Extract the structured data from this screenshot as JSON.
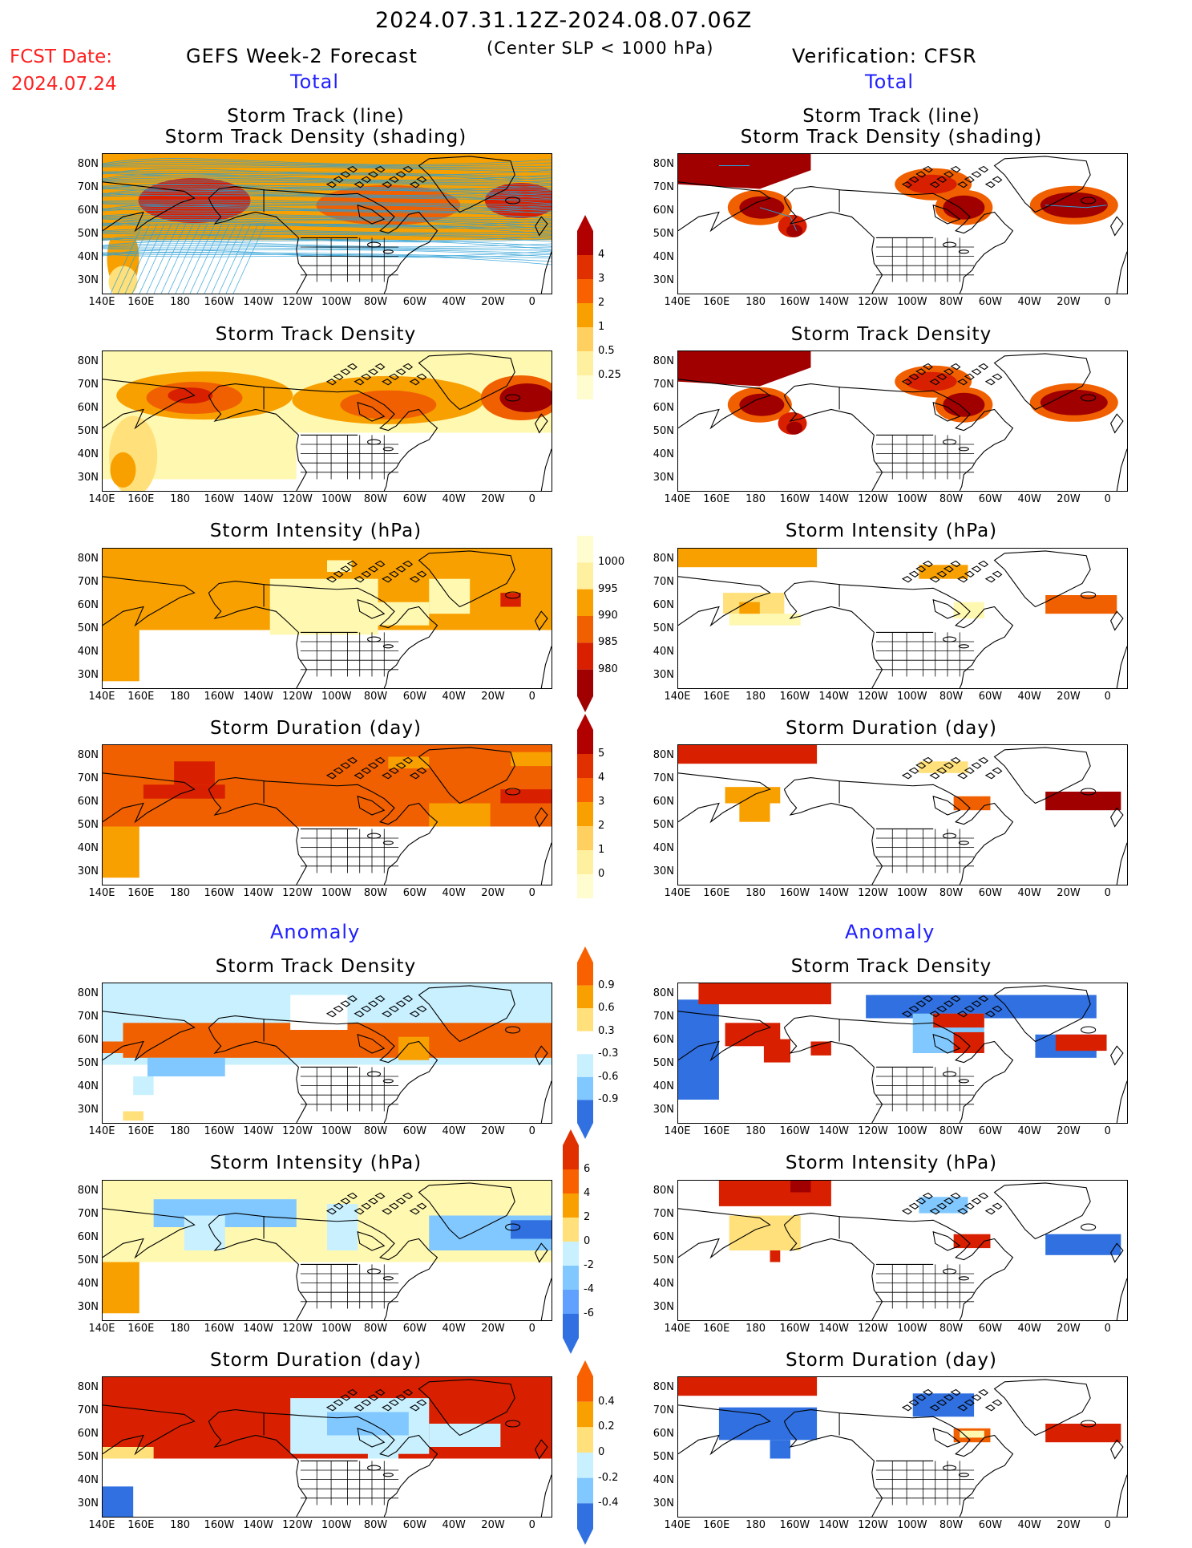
{
  "header": {
    "fcst_label": "FCST Date:",
    "fcst_date": "2024.07.24",
    "left_title": "GEFS Week-2 Forecast",
    "period": "2024.07.31.12Z-2024.08.07.06Z",
    "condition": "(Center SLP < 1000 hPa)",
    "right_title": "Verification: CFSR",
    "total_left": "Total",
    "total_right": "Total",
    "anomaly_left": "Anomaly",
    "anomaly_right": "Anomaly"
  },
  "axes": {
    "lat_ticks": [
      "80N",
      "70N",
      "60N",
      "50N",
      "40N",
      "30N"
    ],
    "lon_ticks": [
      "140E",
      "160E",
      "180",
      "160W",
      "140W",
      "120W",
      "100W",
      "80W",
      "60W",
      "40W",
      "20W",
      "0"
    ]
  },
  "panel_titles": {
    "track_line": "Storm Track (line)",
    "track_shading": "Storm Track Density (shading)",
    "density": "Storm Track Density",
    "intensity": "Storm Intensity (hPa)",
    "duration": "Storm Duration (day)"
  },
  "colorbars": {
    "density_total": [
      "4",
      "3",
      "2",
      "1",
      "0.5",
      "0.25"
    ],
    "intensity_total": [
      "1000",
      "995",
      "990",
      "985",
      "980"
    ],
    "duration_total": [
      "5",
      "4",
      "3",
      "2",
      "1",
      "0"
    ],
    "density_anom": [
      "0.9",
      "0.6",
      "0.3",
      "-0.3",
      "-0.6",
      "-0.9"
    ],
    "intensity_anom": [
      "6",
      "4",
      "2",
      "0",
      "-2",
      "-4",
      "-6"
    ],
    "duration_anom": [
      "0.4",
      "0.2",
      "0",
      "-0.2",
      "-0.4"
    ]
  },
  "colors": {
    "warm": [
      "#fff8b0",
      "#ffe07a",
      "#f8a000",
      "#f06000",
      "#d82000",
      "#a00000"
    ],
    "cool": [
      "#c8f0ff",
      "#80c8ff",
      "#3070e0"
    ],
    "track_line": "#2a9fd6"
  },
  "chart_data": [
    {
      "type": "heatmap",
      "panel": "Forecast Total Storm Track (line) / Storm Track Density (shading)",
      "xlim": [
        "140E",
        "0"
      ],
      "ylim": [
        "25N",
        "85N"
      ]
    },
    {
      "type": "heatmap",
      "panel": "Verification Total Storm Track (line) / Storm Track Density (shading)",
      "xlim": [
        "140E",
        "0"
      ],
      "ylim": [
        "25N",
        "85N"
      ]
    },
    {
      "type": "heatmap",
      "panel": "Forecast Total Storm Track Density",
      "levels": [
        0.25,
        0.5,
        1,
        2,
        3,
        4
      ]
    },
    {
      "type": "heatmap",
      "panel": "Verification Total Storm Track Density",
      "levels": [
        0.25,
        0.5,
        1,
        2,
        3,
        4
      ]
    },
    {
      "type": "heatmap",
      "panel": "Forecast Total Storm Intensity (hPa)",
      "levels": [
        980,
        985,
        990,
        995,
        1000
      ]
    },
    {
      "type": "heatmap",
      "panel": "Verification Total Storm Intensity (hPa)",
      "levels": [
        980,
        985,
        990,
        995,
        1000
      ]
    },
    {
      "type": "heatmap",
      "panel": "Forecast Total Storm Duration (day)",
      "levels": [
        0,
        1,
        2,
        3,
        4,
        5
      ]
    },
    {
      "type": "heatmap",
      "panel": "Verification Total Storm Duration (day)",
      "levels": [
        0,
        1,
        2,
        3,
        4,
        5
      ]
    },
    {
      "type": "heatmap",
      "panel": "Forecast Anomaly Storm Track Density",
      "levels": [
        -0.9,
        -0.6,
        -0.3,
        0.3,
        0.6,
        0.9
      ]
    },
    {
      "type": "heatmap",
      "panel": "Verification Anomaly Storm Track Density",
      "levels": [
        -0.9,
        -0.6,
        -0.3,
        0.3,
        0.6,
        0.9
      ]
    },
    {
      "type": "heatmap",
      "panel": "Forecast Anomaly Storm Intensity (hPa)",
      "levels": [
        -6,
        -4,
        -2,
        0,
        2,
        4,
        6
      ]
    },
    {
      "type": "heatmap",
      "panel": "Verification Anomaly Storm Intensity (hPa)",
      "levels": [
        -6,
        -4,
        -2,
        0,
        2,
        4,
        6
      ]
    },
    {
      "type": "heatmap",
      "panel": "Forecast Anomaly Storm Duration (day)",
      "levels": [
        -0.4,
        -0.2,
        0,
        0.2,
        0.4
      ]
    },
    {
      "type": "heatmap",
      "panel": "Verification Anomaly Storm Duration (day)",
      "levels": [
        -0.4,
        -0.2,
        0,
        0.2,
        0.4
      ]
    }
  ]
}
